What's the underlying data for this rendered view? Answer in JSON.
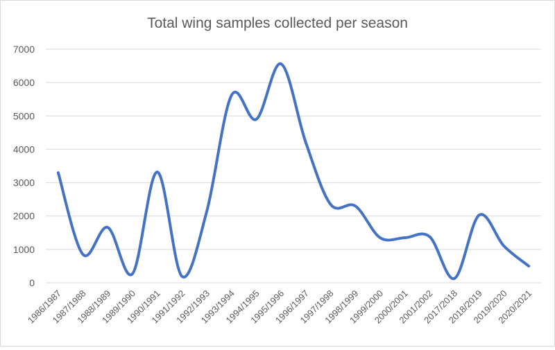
{
  "chart_data": {
    "type": "line",
    "title": "Total wing samples collected per season",
    "xlabel": "",
    "ylabel": "",
    "ylim": [
      0,
      7000
    ],
    "yticks": [
      0,
      1000,
      2000,
      3000,
      4000,
      5000,
      6000,
      7000
    ],
    "grid": true,
    "smooth": true,
    "categories": [
      "1986/1987",
      "1987/1988",
      "1988/1989",
      "1989/1990",
      "1990/1991",
      "1991/1992",
      "1992/1993",
      "1993/1994",
      "1994/1995",
      "1995/1996",
      "1996/1997",
      "1997/1998",
      "1998/1999",
      "1999/2000",
      "2000/2001",
      "2001/2002",
      "2017/2018",
      "2018/2019",
      "2019/2020",
      "2020/2021"
    ],
    "series": [
      {
        "name": "Total wing samples",
        "color": "#4472C4",
        "values": [
          3300,
          850,
          1660,
          270,
          3320,
          190,
          2140,
          5620,
          4900,
          6560,
          4200,
          2350,
          2300,
          1350,
          1350,
          1380,
          130,
          2030,
          1100,
          500
        ]
      }
    ]
  }
}
